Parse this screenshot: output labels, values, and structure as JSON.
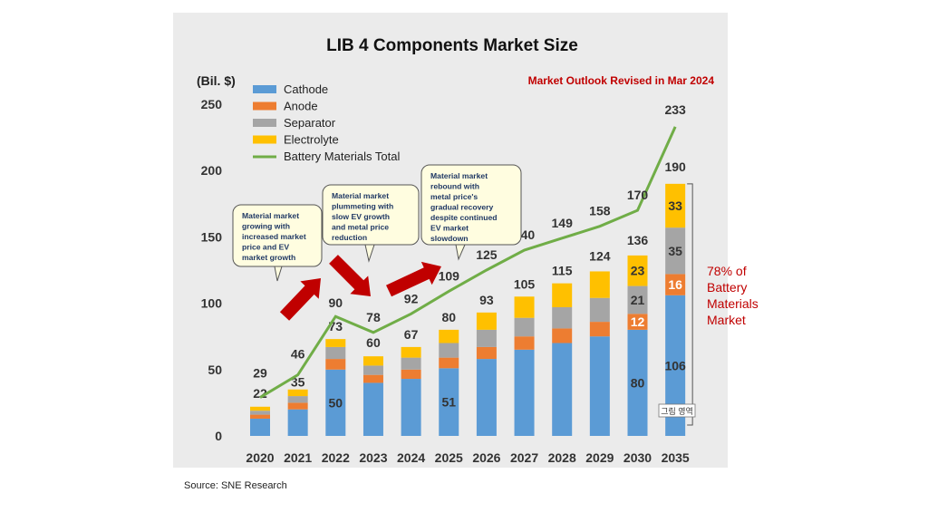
{
  "chart_data": {
    "type": "bar",
    "stacked": true,
    "title": "LIB 4 Components Market Size",
    "ylabel": "(Bil. $)",
    "ylim": [
      0,
      250
    ],
    "yticks": [
      0,
      50,
      100,
      150,
      200,
      250
    ],
    "grid": false,
    "legend_position": "top-left",
    "categories": [
      "2020",
      "2021",
      "2022",
      "2023",
      "2024",
      "2025",
      "2026",
      "2027",
      "2028",
      "2029",
      "2030",
      "2035"
    ],
    "series": [
      {
        "name": "Cathode",
        "color": "#5b9bd5",
        "values": [
          13,
          20,
          50,
          40,
          43,
          51,
          58,
          65,
          70,
          75,
          80,
          106
        ]
      },
      {
        "name": "Anode",
        "color": "#ed7d31",
        "values": [
          3,
          5,
          8,
          6,
          7,
          8,
          9,
          10,
          11,
          11,
          12,
          16
        ]
      },
      {
        "name": "Separator",
        "color": "#a5a5a5",
        "values": [
          3,
          5,
          9,
          7,
          9,
          11,
          13,
          14,
          16,
          18,
          21,
          35
        ]
      },
      {
        "name": "Electrolyte",
        "color": "#ffc000",
        "values": [
          3,
          5,
          6,
          7,
          8,
          10,
          13,
          16,
          18,
          20,
          23,
          33
        ]
      }
    ],
    "totals": [
      22,
      35,
      73,
      60,
      67,
      80,
      93,
      105,
      115,
      124,
      136,
      190
    ],
    "line": {
      "name": "Battery Materials Total",
      "color": "#70ad47",
      "values": [
        29,
        46,
        90,
        78,
        92,
        109,
        125,
        140,
        149,
        158,
        170,
        233
      ]
    },
    "segment_labels": [
      {
        "category": "2022",
        "series": "Cathode",
        "text": "50"
      },
      {
        "category": "2025",
        "series": "Cathode",
        "text": "51"
      },
      {
        "category": "2030",
        "series": "Cathode",
        "text": "80"
      },
      {
        "category": "2030",
        "series": "Anode",
        "text": "12"
      },
      {
        "category": "2030",
        "series": "Separator",
        "text": "21"
      },
      {
        "category": "2030",
        "series": "Electrolyte",
        "text": "23"
      },
      {
        "category": "2035",
        "series": "Cathode",
        "text": "106"
      },
      {
        "category": "2035",
        "series": "Anode",
        "text": "16"
      },
      {
        "category": "2035",
        "series": "Separator",
        "text": "35"
      },
      {
        "category": "2035",
        "series": "Electrolyte",
        "text": "33"
      }
    ],
    "annotation_outlook": "Market Outlook Revised in Mar 2024",
    "share_note": [
      "78% of",
      "Battery",
      "Materials",
      "Market"
    ],
    "callouts": [
      {
        "lines": [
          "Material market",
          "growing with",
          "increased market",
          "price and EV",
          "market growth"
        ]
      },
      {
        "lines": [
          "Material market",
          "plummeting with",
          "slow EV growth",
          "and metal price",
          "reduction"
        ]
      },
      {
        "lines": [
          "Material market",
          "rebound with",
          "metal price's",
          "gradual recovery",
          "despite continued",
          "EV market",
          "slowdown"
        ]
      }
    ],
    "area_tag": "그림 영역"
  },
  "source": "Source: SNE Research"
}
